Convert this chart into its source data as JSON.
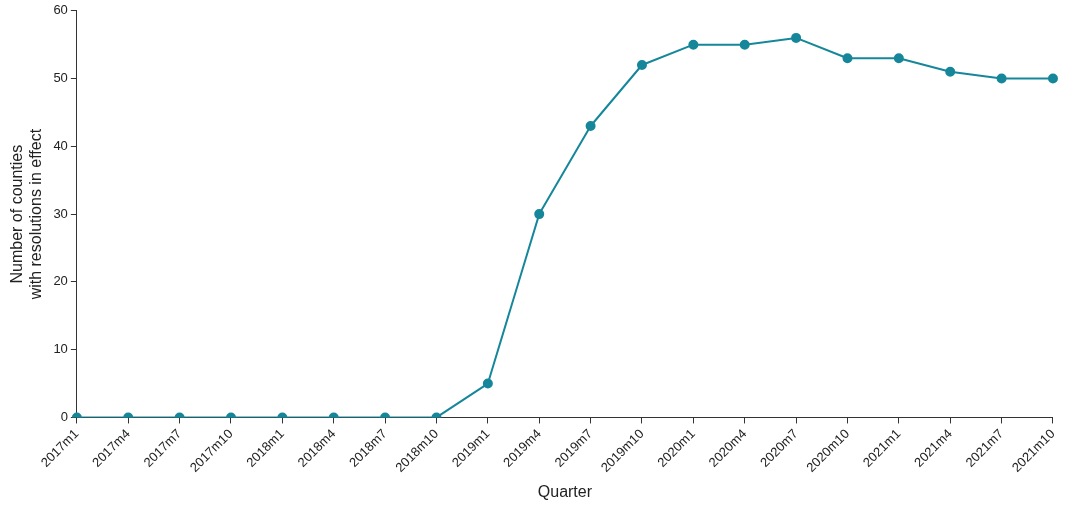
{
  "chart_data": {
    "type": "line",
    "xlabel": "Quarter",
    "ylabel": "Number of counties\nwith resolutions in effect",
    "categories": [
      "2017m1",
      "2017m4",
      "2017m7",
      "2017m10",
      "2018m1",
      "2018m4",
      "2018m7",
      "2018m10",
      "2019m1",
      "2019m4",
      "2019m7",
      "2019m10",
      "2020m1",
      "2020m4",
      "2020m7",
      "2020m10",
      "2021m1",
      "2021m4",
      "2021m7",
      "2021m10"
    ],
    "series": [
      {
        "color": "#16879a",
        "values": [
          0,
          0,
          0,
          0,
          0,
          0,
          0,
          0,
          5,
          30,
          43,
          52,
          55,
          55,
          56,
          53,
          53,
          51,
          50,
          50
        ]
      }
    ],
    "ylim": [
      0,
      60
    ],
    "yticks": [
      0,
      10,
      20,
      30,
      40,
      50,
      60
    ],
    "grid": false,
    "legend": false,
    "marker": "circle",
    "line_style": "solid"
  }
}
